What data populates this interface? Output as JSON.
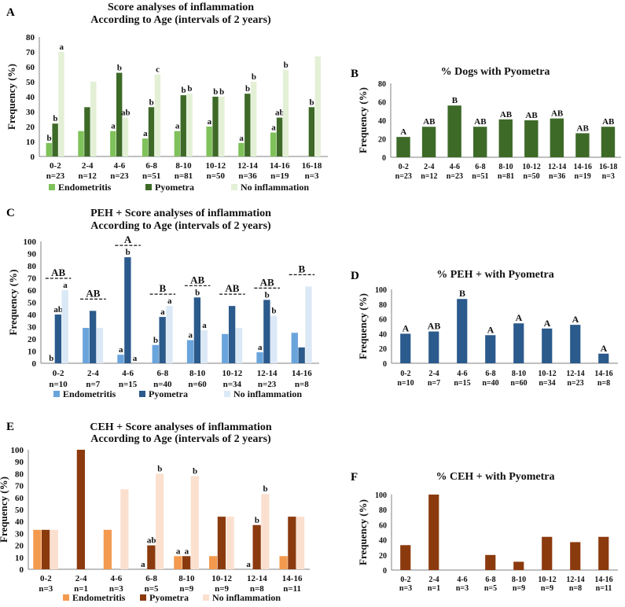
{
  "panel_labels": [
    "A",
    "B",
    "C",
    "D",
    "E",
    "F"
  ],
  "colors": {
    "endo_A": "#7fc15a",
    "pyo_A": "#3e6a28",
    "noinf_A": "#e3f0d5",
    "endo_C": "#6aa4dc",
    "pyo_C": "#2b5a8c",
    "noinf_C": "#dbe8f6",
    "endo_E": "#f39a4e",
    "pyo_E": "#8b3a0e",
    "noinf_E": "#fbe0d0",
    "axis": "#808080",
    "text": "#111111"
  },
  "chart_data": [
    {
      "id": "A",
      "type": "bar",
      "title": [
        "Score analyses of inflammation",
        "According to Age (intervals of 2 years)"
      ],
      "ylabel": "Frequency (%)",
      "ylim": [
        0,
        80
      ],
      "yticks": [
        0,
        10,
        20,
        30,
        40,
        50,
        60,
        70,
        80
      ],
      "categories": [
        "0-2",
        "2-4",
        "4-6",
        "6-8",
        "8-10",
        "10-12",
        "12-14",
        "14-16",
        "16-18"
      ],
      "n_labels": [
        "n=23",
        "n=12",
        "n=23",
        "n=51",
        "n=81",
        "n=50",
        "n=36",
        "n=19",
        "n=3"
      ],
      "series": [
        {
          "name": "Endometritis",
          "color_key": "endo_A",
          "values": [
            9,
            17,
            17,
            12,
            17,
            20,
            9,
            16,
            0
          ],
          "letters": [
            "b",
            "",
            "a",
            "a",
            "a",
            "a",
            "a",
            "a",
            ""
          ]
        },
        {
          "name": "Pyometra",
          "color_key": "pyo_A",
          "values": [
            22,
            33,
            56,
            33,
            41,
            40,
            42,
            26,
            33
          ],
          "letters": [
            "b",
            "",
            "b",
            "b",
            "b",
            "b",
            "b",
            "ab",
            "b"
          ]
        },
        {
          "name": "No inflammation",
          "color_key": "noinf_A",
          "values": [
            70,
            50,
            26,
            55,
            42,
            40,
            50,
            58,
            67
          ],
          "letters": [
            "a",
            "",
            "ab",
            "c",
            "b",
            "b",
            "b",
            "b",
            ""
          ]
        }
      ],
      "legend": [
        "Endometritis",
        "Pyometra",
        "No inflammation"
      ]
    },
    {
      "id": "B",
      "type": "bar",
      "title": [
        "% Dogs with Pyometra"
      ],
      "ylabel": "Frequency (%)",
      "ylim": [
        0,
        80
      ],
      "yticks": [
        0,
        20,
        40,
        60,
        80
      ],
      "categories": [
        "0-2",
        "2-4",
        "4-6",
        "6-8",
        "8-10",
        "10-12",
        "12-14",
        "14-16",
        "16-18"
      ],
      "n_labels": [
        "n=23",
        "n=12",
        "n=23",
        "n=51",
        "n=81",
        "n=50",
        "n=36",
        "n=19",
        "n=3"
      ],
      "series": [
        {
          "name": "Pyometra",
          "color_key": "pyo_A",
          "values": [
            22,
            33,
            56,
            33,
            41,
            40,
            42,
            26,
            33
          ],
          "letters": [
            "A",
            "AB",
            "B",
            "AB",
            "AB",
            "AB",
            "AB",
            "AB",
            "AB"
          ]
        }
      ]
    },
    {
      "id": "C",
      "type": "bar",
      "title": [
        "PEH + Score analyses of inflammation",
        "According to Age (intervals of 2 years)"
      ],
      "ylabel": "Frequency (%)",
      "ylim": [
        0,
        100
      ],
      "yticks": [
        0,
        10,
        20,
        30,
        40,
        50,
        60,
        70,
        80,
        90,
        100
      ],
      "categories": [
        "0-2",
        "2-4",
        "4-6",
        "6-8",
        "8-10",
        "10-12",
        "12-14",
        "14-16"
      ],
      "n_labels": [
        "n=10",
        "n=7",
        "n=15",
        "n=40",
        "n=60",
        "n=34",
        "n=23",
        "n=8"
      ],
      "series": [
        {
          "name": "Endometritis",
          "color_key": "endo_C",
          "values": [
            0,
            29,
            7,
            15,
            19,
            24,
            9,
            25
          ],
          "letters": [
            "b",
            "",
            "a",
            "b",
            "a",
            "",
            "a",
            ""
          ]
        },
        {
          "name": "Pyometra",
          "color_key": "pyo_C",
          "values": [
            40,
            43,
            87,
            38,
            54,
            47,
            52,
            13
          ],
          "letters": [
            "ab",
            "",
            "b",
            "a",
            "b",
            "",
            "b",
            ""
          ]
        },
        {
          "name": "No inflammation",
          "color_key": "noinf_C",
          "values": [
            60,
            29,
            0,
            47,
            27,
            29,
            39,
            63
          ],
          "letters": [
            "a",
            "",
            "a",
            "a",
            "a",
            "",
            "b",
            ""
          ]
        }
      ],
      "group_letters": [
        "AB",
        "AB",
        "A",
        "B",
        "AB",
        "AB",
        "AB",
        "B"
      ],
      "legend": [
        "Endometritis",
        "Pyometra",
        "No inflammation"
      ]
    },
    {
      "id": "D",
      "type": "bar",
      "title": [
        "% PEH + with Pyometra"
      ],
      "ylabel": "Frequency (%)",
      "ylim": [
        0,
        100
      ],
      "yticks": [
        0,
        20,
        40,
        60,
        80,
        100
      ],
      "categories": [
        "0-2",
        "2-4",
        "4-6",
        "6-8",
        "8-10",
        "10-12",
        "12-14",
        "14-16"
      ],
      "n_labels": [
        "n=10",
        "n=7",
        "n=15",
        "n=40",
        "n=60",
        "n=34",
        "n=23",
        "n=8"
      ],
      "series": [
        {
          "name": "Pyometra",
          "color_key": "pyo_C",
          "values": [
            40,
            43,
            87,
            38,
            54,
            47,
            52,
            13
          ],
          "letters": [
            "A",
            "AB",
            "B",
            "A",
            "A",
            "A",
            "A",
            "A"
          ]
        }
      ]
    },
    {
      "id": "E",
      "type": "bar",
      "title": [
        "CEH + Score analyses of inflammation",
        "According to Age (intervals of 2 years)"
      ],
      "ylabel": "Frequency (%)",
      "ylim": [
        0,
        100
      ],
      "yticks": [
        0,
        10,
        20,
        30,
        40,
        50,
        60,
        70,
        80,
        90,
        100
      ],
      "categories": [
        "0-2",
        "2-4",
        "4-6",
        "6-8",
        "8-10",
        "10-12",
        "12-14",
        "14-16"
      ],
      "n_labels": [
        "n=3",
        "n=1",
        "n=3",
        "n=5",
        "n=9",
        "n=9",
        "n=8",
        "n=11"
      ],
      "series": [
        {
          "name": "Endometritis",
          "color_key": "endo_E",
          "values": [
            33,
            0,
            33,
            0,
            11,
            11,
            0,
            11
          ],
          "letters": [
            "",
            "",
            "",
            "a",
            "a",
            "",
            "a",
            ""
          ]
        },
        {
          "name": "Pyometra",
          "color_key": "pyo_E",
          "values": [
            33,
            100,
            0,
            20,
            11,
            44,
            37,
            44
          ],
          "letters": [
            "",
            "",
            "",
            "ab",
            "a",
            "",
            "b",
            ""
          ]
        },
        {
          "name": "No inflammation",
          "color_key": "noinf_E",
          "values": [
            33,
            0,
            67,
            80,
            78,
            44,
            63,
            44
          ],
          "letters": [
            "",
            "",
            "",
            "b",
            "b",
            "",
            "b",
            ""
          ]
        }
      ],
      "legend": [
        "Endometritis",
        "Pyometra",
        "No inflammation"
      ]
    },
    {
      "id": "F",
      "type": "bar",
      "title": [
        "% CEH + with Pyometra"
      ],
      "ylabel": "Frequency (%)",
      "ylim": [
        0,
        100
      ],
      "yticks": [
        0,
        20,
        40,
        60,
        80,
        100
      ],
      "categories": [
        "0-2",
        "2-4",
        "4-6",
        "6-8",
        "8-10",
        "10-12",
        "12-14",
        "14-16"
      ],
      "n_labels": [
        "n=3",
        "n=1",
        "n=3",
        "n=5",
        "n=9",
        "n=9",
        "n=8",
        "n=11"
      ],
      "series": [
        {
          "name": "Pyometra",
          "color_key": "pyo_E",
          "values": [
            33,
            100,
            0,
            20,
            11,
            44,
            37,
            44
          ],
          "letters": [
            "",
            "",
            "",
            "",
            "",
            "",
            "",
            ""
          ]
        }
      ]
    }
  ]
}
